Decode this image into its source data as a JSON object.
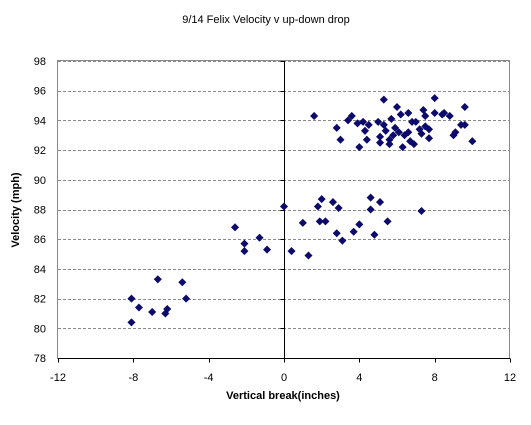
{
  "chart_data": {
    "type": "scatter",
    "title": "9/14 Felix Velocity v  up-down drop",
    "xlabel": "Vertical break(inches)",
    "ylabel": "Velocity (mph)",
    "xlim": [
      -12,
      12
    ],
    "ylim": [
      78,
      98
    ],
    "x_ticks": [
      -12,
      -8,
      -4,
      0,
      4,
      8,
      12
    ],
    "y_ticks": [
      78,
      80,
      82,
      84,
      86,
      88,
      90,
      92,
      94,
      96,
      98
    ],
    "grid": "horizontal dashed",
    "legend": "none",
    "marker": "diamond",
    "colors": {
      "marker": "#0c0a6b",
      "grid": "#8a8a8a",
      "axis": "#000000"
    },
    "series": [
      {
        "points": [
          [
            -8.1,
            82.0
          ],
          [
            -7.7,
            81.4
          ],
          [
            -8.1,
            80.4
          ],
          [
            -7.0,
            81.1
          ],
          [
            -6.7,
            83.3
          ],
          [
            -6.3,
            81.0
          ],
          [
            -6.2,
            81.3
          ],
          [
            -5.4,
            83.1
          ],
          [
            -5.2,
            82.0
          ],
          [
            -2.6,
            86.8
          ],
          [
            -2.1,
            85.7
          ],
          [
            -2.1,
            85.2
          ],
          [
            -1.3,
            86.1
          ],
          [
            -0.9,
            85.3
          ],
          [
            0.0,
            88.2
          ],
          [
            0.4,
            85.2
          ],
          [
            1.0,
            87.1
          ],
          [
            1.3,
            84.9
          ],
          [
            1.8,
            88.2
          ],
          [
            2.0,
            88.7
          ],
          [
            1.9,
            87.2
          ],
          [
            2.2,
            87.2
          ],
          [
            2.6,
            88.5
          ],
          [
            2.9,
            88.1
          ],
          [
            2.8,
            86.4
          ],
          [
            3.1,
            85.9
          ],
          [
            3.7,
            86.5
          ],
          [
            4.0,
            87.0
          ],
          [
            4.6,
            88.0
          ],
          [
            4.6,
            88.8
          ],
          [
            4.8,
            86.3
          ],
          [
            5.1,
            88.5
          ],
          [
            5.5,
            87.2
          ],
          [
            7.3,
            87.9
          ],
          [
            1.6,
            94.3
          ],
          [
            2.8,
            93.5
          ],
          [
            3.0,
            92.7
          ],
          [
            3.4,
            94.0
          ],
          [
            3.6,
            94.3
          ],
          [
            3.9,
            93.8
          ],
          [
            4.2,
            93.9
          ],
          [
            4.0,
            92.2
          ],
          [
            4.3,
            93.3
          ],
          [
            4.5,
            93.7
          ],
          [
            4.4,
            92.7
          ],
          [
            5.0,
            93.9
          ],
          [
            5.1,
            92.5
          ],
          [
            5.1,
            92.9
          ],
          [
            5.3,
            95.4
          ],
          [
            5.3,
            93.7
          ],
          [
            5.4,
            93.3
          ],
          [
            5.6,
            92.7
          ],
          [
            5.7,
            94.1
          ],
          [
            5.6,
            92.4
          ],
          [
            5.8,
            93.0
          ],
          [
            5.9,
            93.5
          ],
          [
            6.0,
            94.9
          ],
          [
            6.1,
            93.2
          ],
          [
            6.2,
            94.4
          ],
          [
            6.3,
            92.2
          ],
          [
            6.4,
            93.0
          ],
          [
            6.6,
            94.5
          ],
          [
            6.6,
            93.2
          ],
          [
            6.7,
            92.6
          ],
          [
            6.8,
            93.9
          ],
          [
            6.9,
            92.4
          ],
          [
            7.0,
            93.9
          ],
          [
            7.2,
            93.4
          ],
          [
            7.3,
            93.1
          ],
          [
            7.4,
            94.7
          ],
          [
            7.5,
            94.3
          ],
          [
            7.5,
            93.6
          ],
          [
            7.7,
            93.4
          ],
          [
            7.7,
            92.8
          ],
          [
            8.0,
            95.5
          ],
          [
            8.0,
            94.5
          ],
          [
            8.4,
            94.4
          ],
          [
            8.5,
            94.5
          ],
          [
            8.8,
            94.3
          ],
          [
            9.0,
            93.0
          ],
          [
            9.1,
            93.2
          ],
          [
            9.4,
            93.7
          ],
          [
            9.6,
            94.9
          ],
          [
            9.6,
            93.7
          ],
          [
            10.0,
            92.6
          ]
        ]
      }
    ]
  }
}
